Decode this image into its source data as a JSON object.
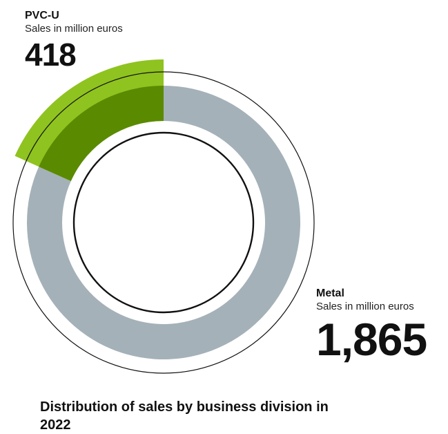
{
  "chart_data": {
    "type": "pie",
    "series": [
      {
        "name": "PVC-U",
        "subtitle": "Sales in million euros",
        "value": 418,
        "display": "418"
      },
      {
        "name": "Metal",
        "subtitle": "Sales in million euros",
        "value": 1865,
        "display": "1,865"
      }
    ],
    "title": "Distribution of sales by business division in 2022",
    "colors": {
      "metal_ring": "#a4b1b8",
      "pvc_outer": "#8fc31f",
      "pvc_inner": "#5a8a00",
      "outline": "#111111"
    }
  }
}
